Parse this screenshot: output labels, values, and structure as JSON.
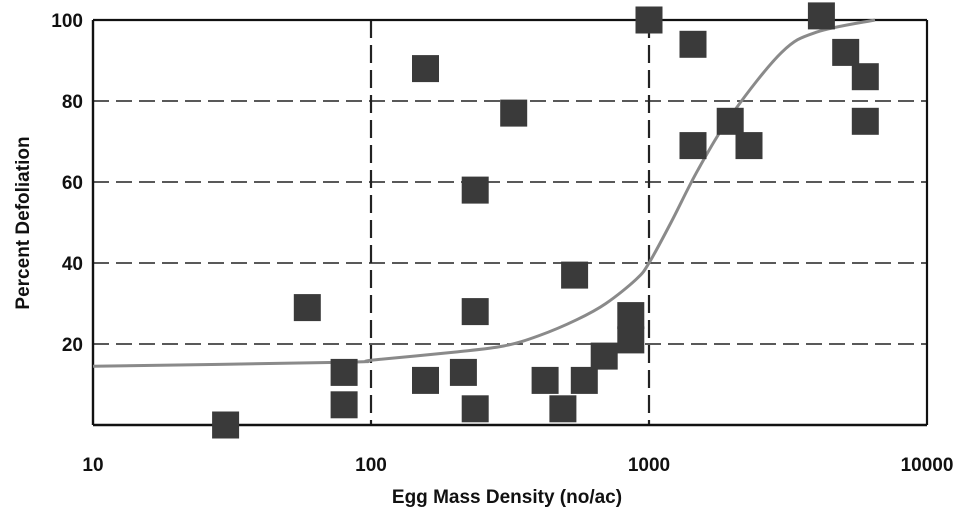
{
  "chart_data": {
    "type": "scatter",
    "title": "",
    "xlabel": "Egg Mass Density (no/ac)",
    "ylabel": "Percent Defoliation",
    "x_scale": "log",
    "xlim": [
      10,
      10000
    ],
    "ylim": [
      0,
      100
    ],
    "x_ticks": [
      10,
      100,
      1000,
      10000
    ],
    "x_tick_labels": [
      "10",
      "100",
      "1000",
      "10000"
    ],
    "y_ticks": [
      20,
      40,
      60,
      80,
      100
    ],
    "y_tick_labels": [
      "20",
      "40",
      "60",
      "80",
      "100"
    ],
    "grid": "dashed, horizontal at 20/40/60/80, vertical at 100 and 1000",
    "legend": "none",
    "colors": {
      "marker": "#3a3a3a",
      "curve": "#8a8a8a",
      "axis": "#111111",
      "grid": "#222222"
    },
    "points": [
      {
        "x": 30,
        "y": 0
      },
      {
        "x": 59,
        "y": 29
      },
      {
        "x": 80,
        "y": 13
      },
      {
        "x": 80,
        "y": 5
      },
      {
        "x": 157,
        "y": 88
      },
      {
        "x": 157,
        "y": 11
      },
      {
        "x": 215,
        "y": 13
      },
      {
        "x": 237,
        "y": 58
      },
      {
        "x": 237,
        "y": 28
      },
      {
        "x": 237,
        "y": 4
      },
      {
        "x": 326,
        "y": 77
      },
      {
        "x": 423,
        "y": 11
      },
      {
        "x": 490,
        "y": 4
      },
      {
        "x": 540,
        "y": 37
      },
      {
        "x": 585,
        "y": 11
      },
      {
        "x": 690,
        "y": 17
      },
      {
        "x": 860,
        "y": 27
      },
      {
        "x": 860,
        "y": 21
      },
      {
        "x": 1000,
        "y": 100
      },
      {
        "x": 1440,
        "y": 94
      },
      {
        "x": 1440,
        "y": 69
      },
      {
        "x": 1960,
        "y": 75
      },
      {
        "x": 2290,
        "y": 69
      },
      {
        "x": 4170,
        "y": 101
      },
      {
        "x": 5100,
        "y": 92
      },
      {
        "x": 6000,
        "y": 86
      },
      {
        "x": 6000,
        "y": 75
      }
    ],
    "curve": [
      {
        "x": 10,
        "y": 14.5
      },
      {
        "x": 80,
        "y": 15.5
      },
      {
        "x": 100,
        "y": 16
      },
      {
        "x": 200,
        "y": 18
      },
      {
        "x": 300,
        "y": 19.5
      },
      {
        "x": 400,
        "y": 22
      },
      {
        "x": 550,
        "y": 26
      },
      {
        "x": 700,
        "y": 30
      },
      {
        "x": 900,
        "y": 36
      },
      {
        "x": 1000,
        "y": 40
      },
      {
        "x": 1200,
        "y": 50
      },
      {
        "x": 1500,
        "y": 63
      },
      {
        "x": 2000,
        "y": 77
      },
      {
        "x": 3000,
        "y": 92
      },
      {
        "x": 4000,
        "y": 97
      },
      {
        "x": 6500,
        "y": 100
      }
    ]
  }
}
